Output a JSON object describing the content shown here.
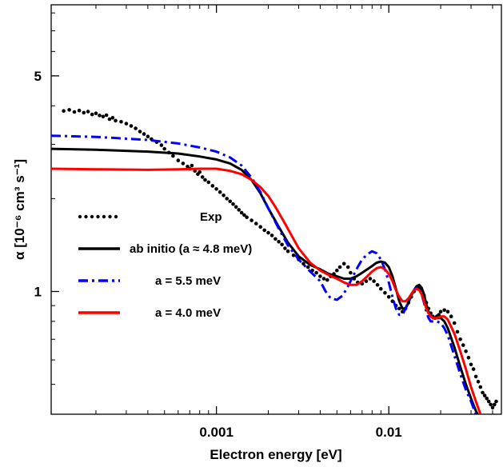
{
  "chart_data": {
    "type": "line",
    "title": "",
    "xlabel": "Electron energy [eV]",
    "ylabel": "α [10⁻⁶ cm³ s⁻¹]",
    "x_scale": "log",
    "y_scale": "log",
    "xlim": [
      0.00011,
      0.045
    ],
    "ylim": [
      0.4,
      8.5
    ],
    "x_ticks": [
      {
        "value": 0.001,
        "label": "0.001"
      },
      {
        "value": 0.01,
        "label": "0.01"
      }
    ],
    "y_ticks": [
      {
        "value": 1,
        "label": "1"
      },
      {
        "value": 5,
        "label": "5"
      }
    ],
    "grid": false,
    "legend_position": "center-left",
    "series": [
      {
        "name": "Exp",
        "style": "dotted",
        "color": "#000000",
        "points": [
          [
            0.00013,
            3.85
          ],
          [
            0.00014,
            3.88
          ],
          [
            0.00015,
            3.82
          ],
          [
            0.00016,
            3.86
          ],
          [
            0.00017,
            3.8
          ],
          [
            0.00018,
            3.83
          ],
          [
            0.00019,
            3.75
          ],
          [
            0.0002,
            3.78
          ],
          [
            0.00021,
            3.72
          ],
          [
            0.00022,
            3.69
          ],
          [
            0.00023,
            3.73
          ],
          [
            0.00024,
            3.62
          ],
          [
            0.00025,
            3.66
          ],
          [
            0.00026,
            3.58
          ],
          [
            0.00028,
            3.55
          ],
          [
            0.0003,
            3.5
          ],
          [
            0.00032,
            3.44
          ],
          [
            0.00034,
            3.38
          ],
          [
            0.00036,
            3.3
          ],
          [
            0.00038,
            3.24
          ],
          [
            0.0004,
            3.18
          ],
          [
            0.00042,
            3.12
          ],
          [
            0.00045,
            3.05
          ],
          [
            0.00048,
            2.98
          ],
          [
            0.0005,
            2.9
          ],
          [
            0.00053,
            2.82
          ],
          [
            0.00056,
            2.75
          ],
          [
            0.0006,
            2.66
          ],
          [
            0.00064,
            2.6
          ],
          [
            0.00068,
            2.54
          ],
          [
            0.0007,
            2.5
          ],
          [
            0.00072,
            2.56
          ],
          [
            0.00075,
            2.46
          ],
          [
            0.00078,
            2.4
          ],
          [
            0.0008,
            2.44
          ],
          [
            0.00083,
            2.35
          ],
          [
            0.00086,
            2.3
          ],
          [
            0.0009,
            2.26
          ],
          [
            0.00095,
            2.2
          ],
          [
            0.001,
            2.15
          ],
          [
            0.00105,
            2.1
          ],
          [
            0.0011,
            2.05
          ],
          [
            0.00115,
            2.0
          ],
          [
            0.0012,
            1.96
          ],
          [
            0.00125,
            1.92
          ],
          [
            0.0013,
            1.88
          ],
          [
            0.00135,
            1.84
          ],
          [
            0.0014,
            1.8
          ],
          [
            0.00145,
            1.77
          ],
          [
            0.0015,
            1.74
          ],
          [
            0.0016,
            1.7
          ],
          [
            0.0017,
            1.66
          ],
          [
            0.0018,
            1.62
          ],
          [
            0.0019,
            1.58
          ],
          [
            0.002,
            1.55
          ],
          [
            0.0021,
            1.52
          ],
          [
            0.0022,
            1.48
          ],
          [
            0.0023,
            1.45
          ],
          [
            0.0024,
            1.42
          ],
          [
            0.0025,
            1.38
          ],
          [
            0.0026,
            1.35
          ],
          [
            0.0028,
            1.31
          ],
          [
            0.003,
            1.27
          ],
          [
            0.0032,
            1.23
          ],
          [
            0.0034,
            1.2
          ],
          [
            0.0036,
            1.17
          ],
          [
            0.0038,
            1.15
          ],
          [
            0.004,
            1.12
          ],
          [
            0.0042,
            1.1
          ],
          [
            0.0044,
            1.09
          ],
          [
            0.0046,
            1.12
          ],
          [
            0.0048,
            1.14
          ],
          [
            0.005,
            1.17
          ],
          [
            0.0052,
            1.2
          ],
          [
            0.0055,
            1.23
          ],
          [
            0.0058,
            1.2
          ],
          [
            0.006,
            1.15
          ],
          [
            0.0063,
            1.1
          ],
          [
            0.0066,
            1.07
          ],
          [
            0.007,
            1.06
          ],
          [
            0.0074,
            1.08
          ],
          [
            0.0078,
            1.1
          ],
          [
            0.0082,
            1.08
          ],
          [
            0.0086,
            1.05
          ],
          [
            0.009,
            1.02
          ],
          [
            0.0095,
            0.99
          ],
          [
            0.01,
            0.96
          ],
          [
            0.0105,
            0.93
          ],
          [
            0.011,
            0.9
          ],
          [
            0.0115,
            0.88
          ],
          [
            0.012,
            0.86
          ],
          [
            0.0125,
            0.88
          ],
          [
            0.013,
            0.92
          ],
          [
            0.0135,
            0.96
          ],
          [
            0.014,
            1.0
          ],
          [
            0.0145,
            1.03
          ],
          [
            0.015,
            1.03
          ],
          [
            0.0155,
            1.01
          ],
          [
            0.016,
            0.97
          ],
          [
            0.0165,
            0.92
          ],
          [
            0.017,
            0.88
          ],
          [
            0.0175,
            0.85
          ],
          [
            0.018,
            0.83
          ],
          [
            0.0185,
            0.82
          ],
          [
            0.019,
            0.83
          ],
          [
            0.0195,
            0.84
          ],
          [
            0.02,
            0.86
          ],
          [
            0.021,
            0.87
          ],
          [
            0.022,
            0.86
          ],
          [
            0.023,
            0.83
          ],
          [
            0.024,
            0.79
          ],
          [
            0.025,
            0.74
          ],
          [
            0.026,
            0.7
          ],
          [
            0.027,
            0.67
          ],
          [
            0.028,
            0.64
          ],
          [
            0.029,
            0.61
          ],
          [
            0.03,
            0.58
          ],
          [
            0.031,
            0.56
          ],
          [
            0.032,
            0.53
          ],
          [
            0.033,
            0.51
          ],
          [
            0.034,
            0.49
          ],
          [
            0.035,
            0.47
          ],
          [
            0.036,
            0.46
          ],
          [
            0.037,
            0.45
          ],
          [
            0.038,
            0.44
          ],
          [
            0.039,
            0.43
          ],
          [
            0.04,
            0.42
          ],
          [
            0.041,
            0.43
          ],
          [
            0.042,
            0.44
          ]
        ]
      },
      {
        "name": "ab initio (a ≈ 4.8 meV)",
        "style": "solid",
        "color": "#000000",
        "points": [
          [
            0.00011,
            2.9
          ],
          [
            0.0002,
            2.88
          ],
          [
            0.0004,
            2.84
          ],
          [
            0.0006,
            2.8
          ],
          [
            0.0008,
            2.74
          ],
          [
            0.001,
            2.68
          ],
          [
            0.0012,
            2.6
          ],
          [
            0.0014,
            2.48
          ],
          [
            0.0016,
            2.3
          ],
          [
            0.0018,
            2.08
          ],
          [
            0.002,
            1.86
          ],
          [
            0.0023,
            1.62
          ],
          [
            0.0026,
            1.44
          ],
          [
            0.003,
            1.3
          ],
          [
            0.0035,
            1.22
          ],
          [
            0.004,
            1.18
          ],
          [
            0.0045,
            1.14
          ],
          [
            0.005,
            1.12
          ],
          [
            0.0055,
            1.1
          ],
          [
            0.006,
            1.1
          ],
          [
            0.0065,
            1.12
          ],
          [
            0.007,
            1.15
          ],
          [
            0.0075,
            1.18
          ],
          [
            0.008,
            1.21
          ],
          [
            0.0085,
            1.24
          ],
          [
            0.009,
            1.25
          ],
          [
            0.0095,
            1.24
          ],
          [
            0.01,
            1.2
          ],
          [
            0.0105,
            1.12
          ],
          [
            0.011,
            1.02
          ],
          [
            0.0115,
            0.93
          ],
          [
            0.012,
            0.88
          ],
          [
            0.0125,
            0.88
          ],
          [
            0.013,
            0.92
          ],
          [
            0.0135,
            0.97
          ],
          [
            0.014,
            1.01
          ],
          [
            0.0145,
            1.04
          ],
          [
            0.015,
            1.05
          ],
          [
            0.0155,
            1.03
          ],
          [
            0.016,
            0.98
          ],
          [
            0.0165,
            0.91
          ],
          [
            0.017,
            0.86
          ],
          [
            0.0175,
            0.83
          ],
          [
            0.018,
            0.82
          ],
          [
            0.019,
            0.82
          ],
          [
            0.02,
            0.82
          ],
          [
            0.021,
            0.8
          ],
          [
            0.022,
            0.76
          ],
          [
            0.024,
            0.66
          ],
          [
            0.026,
            0.57
          ],
          [
            0.028,
            0.5
          ],
          [
            0.03,
            0.45
          ],
          [
            0.032,
            0.41
          ],
          [
            0.0335,
            0.39
          ]
        ]
      },
      {
        "name": "a = 5.5 meV",
        "style": "dashdot",
        "color": "#0000ff",
        "points": [
          [
            0.00011,
            3.2
          ],
          [
            0.0002,
            3.17
          ],
          [
            0.0004,
            3.1
          ],
          [
            0.0006,
            3.02
          ],
          [
            0.0008,
            2.93
          ],
          [
            0.001,
            2.84
          ],
          [
            0.0012,
            2.72
          ],
          [
            0.0014,
            2.56
          ],
          [
            0.0016,
            2.34
          ],
          [
            0.0018,
            2.1
          ],
          [
            0.002,
            1.86
          ],
          [
            0.0023,
            1.6
          ],
          [
            0.0026,
            1.41
          ],
          [
            0.003,
            1.27
          ],
          [
            0.0035,
            1.16
          ],
          [
            0.004,
            1.08
          ],
          [
            0.0043,
            1.0
          ],
          [
            0.0046,
            0.95
          ],
          [
            0.005,
            0.94
          ],
          [
            0.0054,
            0.97
          ],
          [
            0.0058,
            1.04
          ],
          [
            0.0062,
            1.12
          ],
          [
            0.0066,
            1.2
          ],
          [
            0.007,
            1.27
          ],
          [
            0.0075,
            1.32
          ],
          [
            0.008,
            1.35
          ],
          [
            0.0085,
            1.33
          ],
          [
            0.009,
            1.27
          ],
          [
            0.0095,
            1.18
          ],
          [
            0.01,
            1.07
          ],
          [
            0.0105,
            0.96
          ],
          [
            0.011,
            0.88
          ],
          [
            0.0115,
            0.84
          ],
          [
            0.012,
            0.84
          ],
          [
            0.0125,
            0.88
          ],
          [
            0.013,
            0.93
          ],
          [
            0.0135,
            0.98
          ],
          [
            0.014,
            1.01
          ],
          [
            0.0145,
            1.03
          ],
          [
            0.015,
            1.02
          ],
          [
            0.0155,
            0.98
          ],
          [
            0.016,
            0.92
          ],
          [
            0.0165,
            0.86
          ],
          [
            0.017,
            0.82
          ],
          [
            0.0175,
            0.8
          ],
          [
            0.018,
            0.8
          ],
          [
            0.019,
            0.8
          ],
          [
            0.02,
            0.79
          ],
          [
            0.021,
            0.76
          ],
          [
            0.022,
            0.72
          ],
          [
            0.024,
            0.62
          ],
          [
            0.026,
            0.54
          ],
          [
            0.028,
            0.48
          ],
          [
            0.03,
            0.44
          ],
          [
            0.032,
            0.4
          ],
          [
            0.0335,
            0.38
          ]
        ]
      },
      {
        "name": "a = 4.0 meV",
        "style": "solid",
        "color": "#ff0000",
        "points": [
          [
            0.00011,
            2.5
          ],
          [
            0.0002,
            2.49
          ],
          [
            0.0004,
            2.48
          ],
          [
            0.0006,
            2.49
          ],
          [
            0.0008,
            2.5
          ],
          [
            0.001,
            2.5
          ],
          [
            0.0012,
            2.46
          ],
          [
            0.0014,
            2.4
          ],
          [
            0.0016,
            2.3
          ],
          [
            0.0018,
            2.18
          ],
          [
            0.002,
            2.04
          ],
          [
            0.0022,
            1.88
          ],
          [
            0.0025,
            1.66
          ],
          [
            0.0028,
            1.48
          ],
          [
            0.003,
            1.38
          ],
          [
            0.0035,
            1.24
          ],
          [
            0.004,
            1.17
          ],
          [
            0.0045,
            1.13
          ],
          [
            0.005,
            1.1
          ],
          [
            0.0055,
            1.07
          ],
          [
            0.006,
            1.05
          ],
          [
            0.0065,
            1.05
          ],
          [
            0.007,
            1.08
          ],
          [
            0.0075,
            1.12
          ],
          [
            0.008,
            1.16
          ],
          [
            0.0085,
            1.19
          ],
          [
            0.009,
            1.2
          ],
          [
            0.0095,
            1.18
          ],
          [
            0.01,
            1.14
          ],
          [
            0.0105,
            1.08
          ],
          [
            0.011,
            1.01
          ],
          [
            0.0115,
            0.96
          ],
          [
            0.012,
            0.93
          ],
          [
            0.0125,
            0.93
          ],
          [
            0.013,
            0.95
          ],
          [
            0.0135,
            0.98
          ],
          [
            0.014,
            1.01
          ],
          [
            0.0145,
            1.02
          ],
          [
            0.015,
            1.01
          ],
          [
            0.0155,
            0.98
          ],
          [
            0.016,
            0.93
          ],
          [
            0.0165,
            0.88
          ],
          [
            0.017,
            0.85
          ],
          [
            0.0175,
            0.83
          ],
          [
            0.018,
            0.82
          ],
          [
            0.019,
            0.82
          ],
          [
            0.02,
            0.83
          ],
          [
            0.021,
            0.83
          ],
          [
            0.022,
            0.81
          ],
          [
            0.024,
            0.73
          ],
          [
            0.026,
            0.64
          ],
          [
            0.028,
            0.56
          ],
          [
            0.03,
            0.49
          ],
          [
            0.032,
            0.44
          ],
          [
            0.034,
            0.4
          ],
          [
            0.0345,
            0.39
          ]
        ]
      }
    ]
  }
}
